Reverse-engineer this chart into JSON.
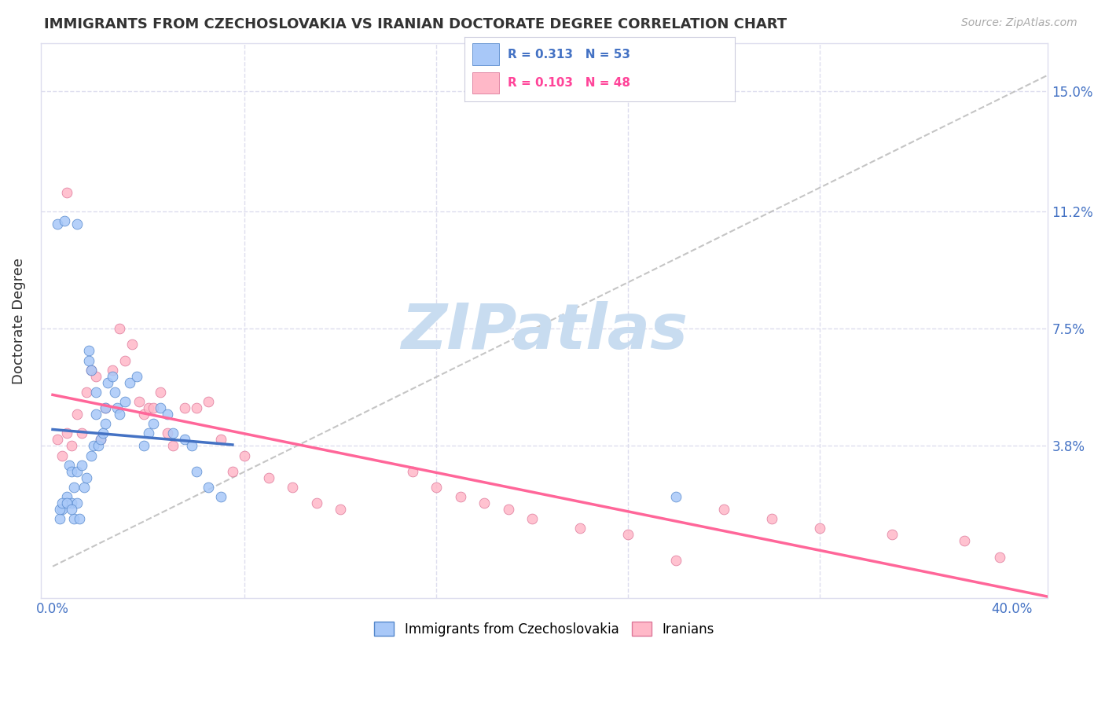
{
  "title": "IMMIGRANTS FROM CZECHOSLOVAKIA VS IRANIAN DOCTORATE DEGREE CORRELATION CHART",
  "source": "Source: ZipAtlas.com",
  "ylabel": "Doctorate Degree",
  "ytick_vals": [
    0.038,
    0.075,
    0.112,
    0.15
  ],
  "ytick_labels": [
    "3.8%",
    "7.5%",
    "11.2%",
    "15.0%"
  ],
  "xtick_vals": [
    0.0,
    0.08,
    0.16,
    0.24,
    0.32,
    0.4
  ],
  "xtick_labels": [
    "0.0%",
    "",
    "",
    "",
    "",
    "40.0%"
  ],
  "xlim": [
    -0.005,
    0.415
  ],
  "ylim": [
    -0.01,
    0.165
  ],
  "color_blue_fill": "#A8C8F8",
  "color_blue_edge": "#5588CC",
  "color_blue_line": "#4472C4",
  "color_pink_fill": "#FFB8C8",
  "color_pink_edge": "#DD7799",
  "color_pink_line": "#FF6699",
  "color_grid": "#DDDDEE",
  "color_diag": "#BBBBBB",
  "color_tick_label": "#4472C4",
  "color_text": "#333333",
  "color_source": "#AAAAAA",
  "color_watermark": "#C8DCF0",
  "watermark": "ZIPatlas",
  "legend_r1_text": "R = 0.313   N = 53",
  "legend_r2_text": "R = 0.103   N = 48",
  "legend_r1_color": "#4472C4",
  "legend_r2_color": "#FF4499",
  "background_color": "#FFFFFF",
  "blue_scatter_x": [
    0.002,
    0.003,
    0.004,
    0.005,
    0.006,
    0.007,
    0.008,
    0.008,
    0.009,
    0.009,
    0.01,
    0.01,
    0.011,
    0.012,
    0.013,
    0.014,
    0.015,
    0.015,
    0.016,
    0.016,
    0.017,
    0.018,
    0.018,
    0.019,
    0.02,
    0.021,
    0.022,
    0.022,
    0.023,
    0.025,
    0.026,
    0.027,
    0.028,
    0.03,
    0.032,
    0.035,
    0.038,
    0.04,
    0.042,
    0.045,
    0.048,
    0.05,
    0.055,
    0.058,
    0.06,
    0.065,
    0.07,
    0.003,
    0.004,
    0.006,
    0.008,
    0.26,
    0.01
  ],
  "blue_scatter_y": [
    0.108,
    0.015,
    0.018,
    0.109,
    0.022,
    0.032,
    0.02,
    0.03,
    0.015,
    0.025,
    0.02,
    0.03,
    0.015,
    0.032,
    0.025,
    0.028,
    0.068,
    0.065,
    0.062,
    0.035,
    0.038,
    0.048,
    0.055,
    0.038,
    0.04,
    0.042,
    0.045,
    0.05,
    0.058,
    0.06,
    0.055,
    0.05,
    0.048,
    0.052,
    0.058,
    0.06,
    0.038,
    0.042,
    0.045,
    0.05,
    0.048,
    0.042,
    0.04,
    0.038,
    0.03,
    0.025,
    0.022,
    0.018,
    0.02,
    0.02,
    0.018,
    0.022,
    0.108
  ],
  "pink_scatter_x": [
    0.002,
    0.004,
    0.006,
    0.008,
    0.01,
    0.012,
    0.014,
    0.016,
    0.018,
    0.02,
    0.022,
    0.025,
    0.028,
    0.03,
    0.033,
    0.036,
    0.038,
    0.04,
    0.042,
    0.045,
    0.048,
    0.05,
    0.055,
    0.06,
    0.065,
    0.07,
    0.075,
    0.08,
    0.09,
    0.1,
    0.11,
    0.12,
    0.15,
    0.16,
    0.17,
    0.18,
    0.19,
    0.2,
    0.22,
    0.24,
    0.26,
    0.28,
    0.3,
    0.32,
    0.35,
    0.38,
    0.395,
    0.006
  ],
  "pink_scatter_y": [
    0.04,
    0.035,
    0.042,
    0.038,
    0.048,
    0.042,
    0.055,
    0.062,
    0.06,
    0.04,
    0.05,
    0.062,
    0.075,
    0.065,
    0.07,
    0.052,
    0.048,
    0.05,
    0.05,
    0.055,
    0.042,
    0.038,
    0.05,
    0.05,
    0.052,
    0.04,
    0.03,
    0.035,
    0.028,
    0.025,
    0.02,
    0.018,
    0.03,
    0.025,
    0.022,
    0.02,
    0.018,
    0.015,
    0.012,
    0.01,
    0.002,
    0.018,
    0.015,
    0.012,
    0.01,
    0.008,
    0.003,
    0.118
  ]
}
